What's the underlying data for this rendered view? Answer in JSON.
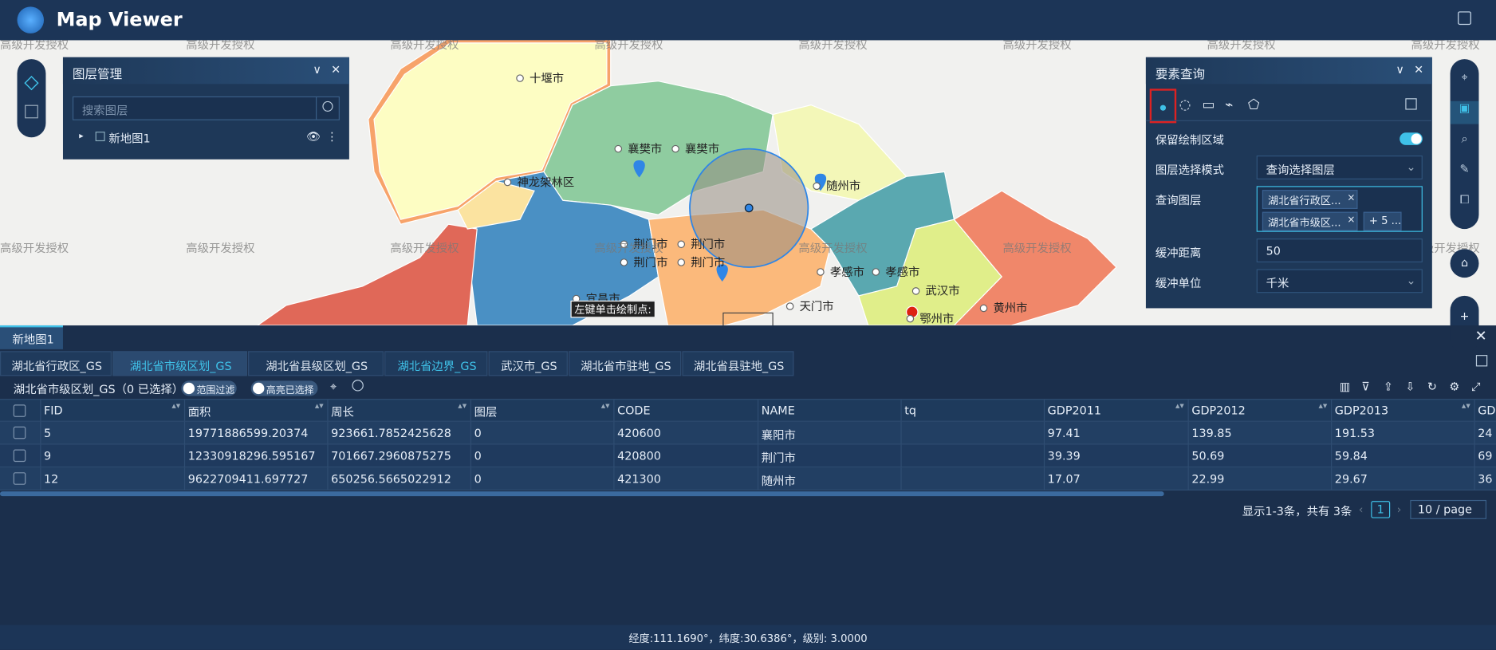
{
  "header": {
    "title": "Map Viewer"
  },
  "watermark": "高级开发授权",
  "map_labels": [
    "十堰市",
    "襄樊市",
    "襄樊市",
    "神龙架林区",
    "随州市",
    "荆门市",
    "荆门市",
    "荆门市",
    "荆门市",
    "孝感市",
    "孝感市",
    "武汉市",
    "天门市",
    "鄂州市",
    "黄州市",
    "宜昌市"
  ],
  "map_hint": "左键单击绘制点:",
  "layer_panel": {
    "title": "图层管理",
    "search_placeholder": "搜索图层",
    "layers": [
      "新地图1"
    ]
  },
  "query_panel": {
    "title": "要素查询",
    "fields": [
      {
        "label": "保留绘制区域"
      },
      {
        "label": "图层选择模式",
        "value": "查询选择图层"
      },
      {
        "label": "查询图层",
        "tags": [
          "湖北省行政区...",
          "湖北省市级区...",
          "+ 5 ..."
        ]
      },
      {
        "label": "缓冲距离",
        "value": "50"
      },
      {
        "label": "缓冲单位",
        "value": "千米"
      }
    ]
  },
  "attribute_table": {
    "map_tab": "新地图1",
    "layer_tabs": [
      "湖北省行政区_GS",
      "湖北省市级区划_GS",
      "湖北省县级区划_GS",
      "湖北省边界_GS",
      "武汉市_GS",
      "湖北省市驻地_GS",
      "湖北省县驻地_GS"
    ],
    "summary": "湖北省市级区划_GS（0 已选择）",
    "toggles": [
      "范围过滤",
      "高亮已选择"
    ],
    "columns": [
      "FID",
      "面积",
      "周长",
      "图层",
      "CODE",
      "NAME",
      "tq",
      "GDP2011",
      "GDP2012",
      "GDP2013",
      "GD"
    ],
    "rows": [
      [
        "5",
        "19771886599.20374",
        "923661.7852425628",
        "0",
        "420600",
        "襄阳市",
        "",
        "97.41",
        "139.85",
        "191.53",
        "24"
      ],
      [
        "9",
        "12330918296.595167",
        "701667.2960875275",
        "0",
        "420800",
        "荆门市",
        "",
        "39.39",
        "50.69",
        "59.84",
        "69"
      ],
      [
        "12",
        "9622709411.697727",
        "650256.5665022912",
        "0",
        "421300",
        "随州市",
        "",
        "17.07",
        "22.99",
        "29.67",
        "36"
      ]
    ],
    "pagination": {
      "summary": "显示1-3条，共有 3条",
      "page": "1",
      "page_size": "10 / page"
    }
  },
  "status": "经度:111.1690°，纬度:30.6386°，级别: 3.0000"
}
